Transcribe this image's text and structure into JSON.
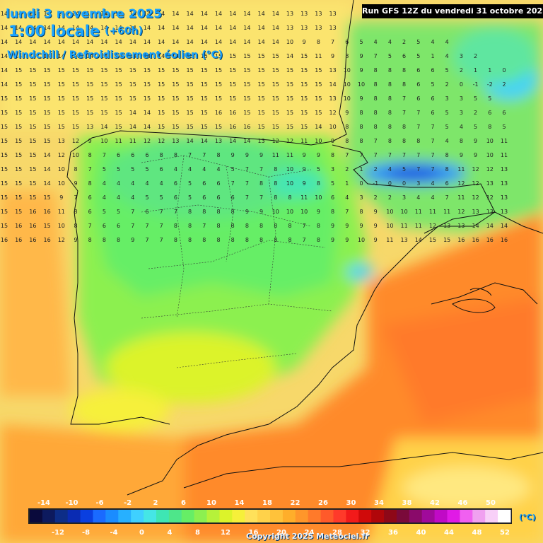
{
  "header": {
    "date": "lundi 3 novembre 2025",
    "time": "1:00 locale",
    "offset": "(+60h)",
    "variable": "Windchill / Refroidissement éolien (°C)"
  },
  "run_info": "Run GFS 12Z du vendredi 31 octobre 2025",
  "copyright": "Copyright 2025 Meteociel.fr",
  "legend": {
    "unit": "(°C)",
    "top_labels": [
      "-14",
      "-10",
      "-6",
      "-2",
      "2",
      "6",
      "10",
      "14",
      "18",
      "22",
      "26",
      "30",
      "34",
      "38",
      "42",
      "46",
      "50"
    ],
    "bottom_labels": [
      "-12",
      "-8",
      "-4",
      "0",
      "4",
      "8",
      "12",
      "16",
      "20",
      "24",
      "28",
      "32",
      "36",
      "40",
      "44",
      "48",
      "52"
    ],
    "colors": [
      "#0a0a3c",
      "#0d1a5e",
      "#0d2d87",
      "#0a2bb3",
      "#0a3fe0",
      "#1a6aff",
      "#1a8cff",
      "#27b0ff",
      "#3fd0ff",
      "#45e6e6",
      "#3ee6b4",
      "#4ee68a",
      "#66ee66",
      "#8cf050",
      "#b6f23a",
      "#dcf32a",
      "#f6f03a",
      "#ffe15a",
      "#ffd24a",
      "#ffc23a",
      "#ffae2a",
      "#ff962a",
      "#ff7a2a",
      "#ff5a2a",
      "#ff3a2a",
      "#f21a1a",
      "#d00a0a",
      "#b0060a",
      "#8e0818",
      "#7a0a3a",
      "#8a0a6a",
      "#a00a9a",
      "#c00ac6",
      "#e01ae6",
      "#f060f0",
      "#f0a0f0",
      "#f8d0f8",
      "#ffffff"
    ]
  },
  "map_values": {
    "row1": "14 14 14 14 14 14 14 14 14 14 14 14 14 14 14 14 14 14 14 14 13 13 13 13",
    "row2": "14 14 14 14 14 14 14 14 14 14 14 14 14 14 14 14 14 14 14 14 13 13 13 13",
    "row3": "14 14 14 14 14 14 14 14 14 14 14 14 14 14 14 14 14 14 14 14 10 9 8 7 6 5 4 4 2 5 4 4",
    "row4": "14 14 14 14 14 14 14 14 14 14 14 14 14 15 15 15 15 15 15 15 14 15 11 9 8 9 7 5 6 5 1 4 3 2",
    "row5": "14 15 15 15 15 15 15 15 15 15 15 15 15 15 15 15 15 15 15 15 15 15 15 13 10 9 8 8 8 6 6 5 2 1 1 0",
    "row6": "14 15 15 15 15 15 15 15 15 15 15 15 15 15 15 15 15 15 15 15 15 15 15 14 10 10 8 8 8 6 5 2 0 -1 -2 2",
    "row7": "15 15 15 15 15 15 15 15 15 15 15 15 15 15 15 15 15 15 15 15 15 15 15 13 10 9 8 8 7 6 6 3 3 5 5",
    "row8": "15 15 15 15 15 15 15 15 15 14 14 15 15 15 15 16 16 15 15 15 15 15 15 12 9 8 8 8 7 7 6 5 3 2 6 6",
    "row9": "15 15 15 15 15 15 13 14 15 14 14 15 15 15 15 15 16 16 15 15 15 15 14 10 8 8 8 8 8 7 7 5 4 5 8 5",
    "row10": "15 15 15 15 13 12 9 10 11 11 12 12 13 14 14 13 14 14 13 12 12 11 10 9 8 8 7 8 8 8 7 4 8 9 10 11",
    "row11": "15 15 15 14 12 10 8 7 6 6 6 8 8 7 7 8 9 9 9 11 11 9 9 8 7 7 7 7 7 7 7 8 9 9 10 11",
    "row12": "15 15 15 14 10 8 7 5 5 5 5 6 4 4 4 4 5 7 7 8 10 9 5 3 2 1 2 4 5 7 7 8 11 12 12 13",
    "row13": "15 15 15 14 10 9 8 4 4 4 4 4 6 5 6 6 7 7 8 8 10 9 8 5 1 0 -1 0 0 3 4 6 12 12 13 13",
    "row14": "15 15 15 15 9 7 6 4 4 4 5 5 6 5 6 6 6 7 7 8 8 11 10 6 4 3 2 2 3 4 4 7 11 12 12 13",
    "row15": "15 15 16 16 11 8 6 5 5 7 6 7 7 8 8 8 8 9 9 10 10 10 9 8 7 8 9 10 10 11 11 11 12 13 13 13",
    "row16": "15 16 16 15 10 8 7 6 6 7 7 7 8 8 7 8 8 8 8 8 8 7 8 9 9 9 9 10 11 11 12 13 13 14 14 14",
    "row17": "16 16 16 16 12 9 8 8 8 9 7 7 8 8 8 8 8 8 8 8 8 7 8 9 9 10 9 11 13 14 15 15 16 16 16 16"
  }
}
